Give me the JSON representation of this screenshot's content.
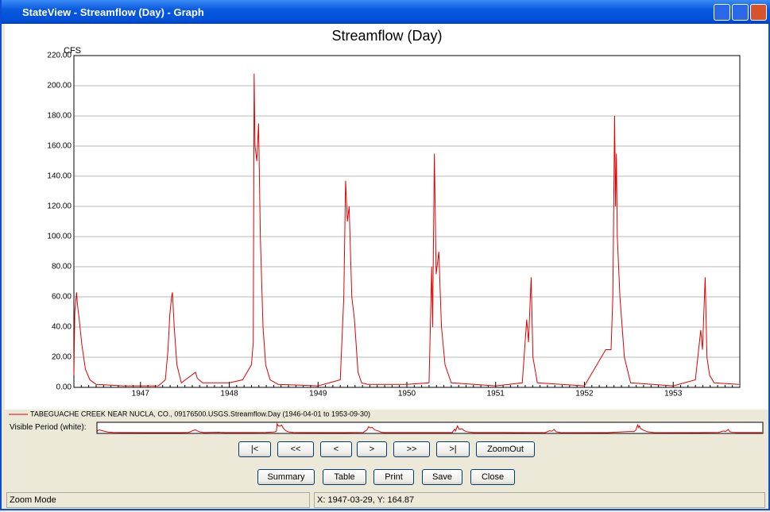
{
  "window": {
    "title": "StateView - Streamflow (Day) - Graph"
  },
  "chart_data": {
    "type": "line",
    "title": "Streamflow (Day)",
    "y_label": "CFS",
    "xlim": [
      1946.25,
      1953.75
    ],
    "xticks": [
      1947,
      1948,
      1949,
      1950,
      1951,
      1952,
      1953
    ],
    "ylim": [
      0,
      220
    ],
    "yticks": [
      {
        "value": 0,
        "label": "0.00"
      },
      {
        "value": 20,
        "label": "20.00"
      },
      {
        "value": 40,
        "label": "40.00"
      },
      {
        "value": 60,
        "label": "60.00"
      },
      {
        "value": 80,
        "label": "80.00"
      },
      {
        "value": 100,
        "label": "100.00"
      },
      {
        "value": 120,
        "label": "120.00"
      },
      {
        "value": 140,
        "label": "140.00"
      },
      {
        "value": 160,
        "label": "160.00"
      },
      {
        "value": 180,
        "label": "180.00"
      },
      {
        "value": 200,
        "label": "200.00"
      },
      {
        "value": 220,
        "label": "220.00"
      }
    ],
    "grid": true,
    "x": [
      1946.25,
      1946.26,
      1946.28,
      1946.29,
      1946.31,
      1946.34,
      1946.38,
      1946.43,
      1946.5,
      1946.8,
      1947.2,
      1947.28,
      1947.31,
      1947.33,
      1947.35,
      1947.36,
      1947.38,
      1947.41,
      1947.46,
      1947.62,
      1947.64,
      1947.7,
      1948.0,
      1948.15,
      1948.25,
      1948.27,
      1948.28,
      1948.29,
      1948.31,
      1948.33,
      1948.35,
      1948.38,
      1948.41,
      1948.46,
      1948.55,
      1949.0,
      1949.25,
      1949.29,
      1949.31,
      1949.33,
      1949.35,
      1949.38,
      1949.41,
      1949.45,
      1949.49,
      1949.56,
      1950.0,
      1950.25,
      1950.28,
      1950.29,
      1950.31,
      1950.33,
      1950.36,
      1950.39,
      1950.43,
      1950.5,
      1951.0,
      1951.3,
      1951.35,
      1951.37,
      1951.4,
      1951.42,
      1951.47,
      1952.0,
      1952.24,
      1952.3,
      1952.32,
      1952.34,
      1952.35,
      1952.36,
      1952.37,
      1952.4,
      1952.45,
      1952.52,
      1953.0,
      1953.25,
      1953.31,
      1953.33,
      1953.36,
      1953.38,
      1953.41,
      1953.46,
      1953.74
    ],
    "series": [
      {
        "name": "TABEGUACHE CREEK NEAR NUCLA, CO., 09176500.USGS.Streamflow.Day (1946-04-01 to 1953-09-30)",
        "color": "#e00000",
        "values": [
          8,
          50,
          63,
          55,
          45,
          28,
          12,
          5,
          2,
          1,
          1,
          5,
          25,
          48,
          60,
          63,
          40,
          15,
          3,
          10,
          6,
          3,
          3,
          5,
          15,
          30,
          208,
          160,
          150,
          175,
          100,
          40,
          15,
          5,
          2,
          1,
          5,
          60,
          137,
          110,
          120,
          60,
          45,
          10,
          3,
          2,
          2,
          3,
          80,
          40,
          155,
          75,
          90,
          40,
          15,
          3,
          1,
          3,
          45,
          30,
          73,
          20,
          3,
          1,
          25,
          25,
          60,
          180,
          120,
          155,
          100,
          60,
          20,
          3,
          1,
          5,
          38,
          25,
          73,
          20,
          8,
          3,
          2
        ]
      }
    ]
  },
  "overview": {
    "label": "Visible Period (white):"
  },
  "buttons": [
    "|<",
    "<<",
    "<",
    ">",
    ">>",
    ">|",
    "ZoomOut",
    "Summary",
    "Table",
    "Print",
    "Save",
    "Close"
  ],
  "status": {
    "mode": "Zoom Mode",
    "position": "X: 1947-03-29, Y: 164.87"
  }
}
